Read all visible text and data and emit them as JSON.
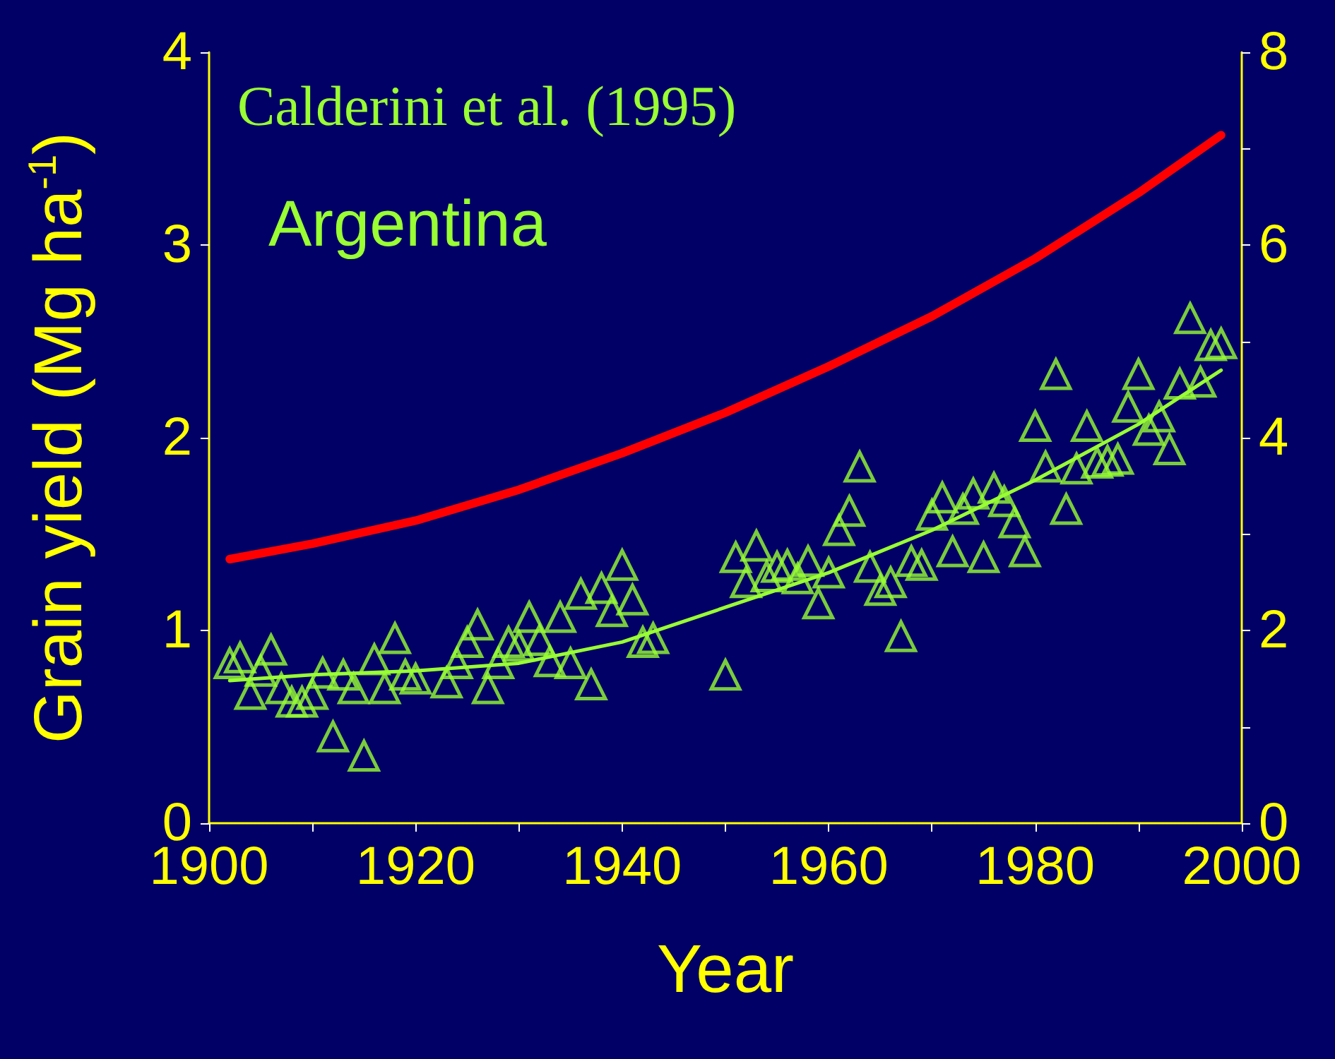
{
  "chart_data": {
    "type": "scatter",
    "xlabel": "Year",
    "ylabel": "Grain yield (Mg ha$^{-1}$)",
    "annotations": [
      "Calderini et al. (1995)",
      "Argentina"
    ],
    "xlim": [
      1900,
      2000
    ],
    "xticks": [
      1900,
      {
        "value": 1910,
        "label": null
      },
      1920,
      {
        "value": 1930,
        "label": null
      },
      1940,
      {
        "value": 1950,
        "label": null
      },
      1960,
      {
        "value": 1970,
        "label": null
      },
      1980,
      {
        "value": 1990,
        "label": null
      },
      2000
    ],
    "ylim": [
      0,
      4
    ],
    "yticks": [
      0,
      1,
      2,
      3,
      4
    ],
    "y2lim": [
      0,
      8
    ],
    "y2ticks": [
      0,
      {
        "value": 1,
        "label": null
      },
      2,
      {
        "value": 3,
        "label": null
      },
      4,
      {
        "value": 5,
        "label": null
      },
      6,
      {
        "value": 7,
        "label": null
      },
      8
    ],
    "grid": false,
    "series": [
      {
        "marker": "triangle",
        "color": "#99ff33",
        "x": [
          1902,
          1903,
          1904,
          1905,
          1906,
          1907,
          1908,
          1909,
          1910,
          1911,
          1912,
          1913,
          1914,
          1915,
          1916,
          1917,
          1918,
          1919,
          1920,
          1923,
          1924,
          1925,
          1926,
          1927,
          1928,
          1929,
          1930,
          1931,
          1932,
          1933,
          1934,
          1935,
          1936,
          1937,
          1938,
          1939,
          1940,
          1941,
          1942,
          1943,
          1950,
          1951,
          1952,
          1953,
          1954,
          1955,
          1956,
          1957,
          1958,
          1959,
          1960,
          1961,
          1962,
          1963,
          1964,
          1965,
          1966,
          1967,
          1968,
          1969,
          1970,
          1971,
          1972,
          1973,
          1974,
          1975,
          1976,
          1977,
          1978,
          1979,
          1980,
          1981,
          1982,
          1983,
          1984,
          1985,
          1986,
          1987,
          1988,
          1989,
          1990,
          1991,
          1992,
          1993,
          1994,
          1995,
          1996,
          1997,
          1998
        ],
        "values": [
          0.83,
          0.86,
          0.67,
          0.79,
          0.9,
          0.7,
          0.63,
          0.63,
          0.67,
          0.78,
          0.45,
          0.77,
          0.7,
          0.35,
          0.85,
          0.7,
          0.96,
          0.77,
          0.75,
          0.73,
          0.83,
          0.94,
          1.03,
          0.7,
          0.83,
          0.94,
          0.92,
          1.07,
          0.95,
          0.84,
          1.07,
          0.83,
          1.19,
          0.72,
          1.22,
          1.1,
          1.34,
          1.16,
          0.94,
          0.96,
          0.77,
          1.38,
          1.25,
          1.44,
          1.28,
          1.33,
          1.34,
          1.27,
          1.36,
          1.14,
          1.3,
          1.52,
          1.62,
          1.85,
          1.33,
          1.21,
          1.25,
          0.97,
          1.36,
          1.34,
          1.6,
          1.69,
          1.41,
          1.63,
          1.71,
          1.38,
          1.74,
          1.67,
          1.56,
          1.41,
          2.06,
          1.85,
          2.33,
          1.63,
          1.84,
          2.06,
          1.87,
          1.88,
          1.89,
          2.16,
          2.33,
          2.04,
          2.11,
          1.94,
          2.28,
          2.62,
          2.29,
          2.48,
          2.49
        ]
      },
      {
        "type": "line",
        "marker": "none",
        "color": "#99ff33",
        "x": [
          1902,
          1910,
          1920,
          1930,
          1940,
          1950,
          1960,
          1970,
          1980,
          1990,
          1998
        ],
        "values": [
          0.74,
          0.77,
          0.79,
          0.83,
          0.94,
          1.12,
          1.3,
          1.52,
          1.78,
          2.07,
          2.35
        ]
      },
      {
        "type": "line",
        "marker": "none",
        "color": "#ff0000",
        "x": [
          1902,
          1910,
          1920,
          1930,
          1940,
          1950,
          1960,
          1970,
          1980,
          1990,
          1998
        ],
        "values": [
          1.37,
          1.45,
          1.57,
          1.73,
          1.92,
          2.13,
          2.37,
          2.63,
          2.93,
          3.27,
          3.57
        ]
      }
    ]
  }
}
